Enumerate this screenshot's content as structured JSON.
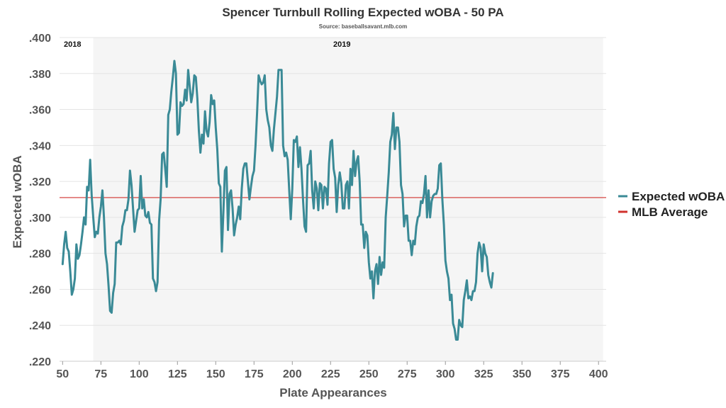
{
  "chart_data": {
    "type": "line",
    "title": "Spencer Turnbull Rolling Expected wOBA - 50 PA",
    "subtitle": "Source: baseballsavant.mlb.com",
    "xlabel": "Plate Appearances",
    "ylabel": "Expected wOBA",
    "xlim": [
      48,
      405
    ],
    "ylim": [
      0.22,
      0.4
    ],
    "x_ticks": [
      "50",
      "75",
      "100",
      "125",
      "150",
      "175",
      "200",
      "225",
      "250",
      "275",
      "300",
      "325",
      "350",
      "375",
      "400"
    ],
    "y_ticks": [
      ".400",
      ".380",
      ".360",
      ".340",
      ".320",
      ".300",
      ".280",
      ".260",
      ".240",
      ".220"
    ],
    "grid": true,
    "legend_position": "right",
    "seasons": [
      {
        "label": "2018",
        "x_start": 48,
        "x_end": 70,
        "shaded": false
      },
      {
        "label": "2019",
        "x_start": 70,
        "x_end": 403,
        "shaded": true
      }
    ],
    "reference_line": {
      "name": "MLB Average",
      "value": 0.311,
      "color": "#d0312d"
    },
    "series": [
      {
        "name": "Expected wOBA",
        "color": "#3a8a96",
        "points": [
          [
            50,
            0.274
          ],
          [
            51,
            0.285
          ],
          [
            52,
            0.292
          ],
          [
            53,
            0.283
          ],
          [
            54,
            0.281
          ],
          [
            55,
            0.27
          ],
          [
            56,
            0.257
          ],
          [
            57,
            0.26
          ],
          [
            58,
            0.266
          ],
          [
            59,
            0.285
          ],
          [
            60,
            0.277
          ],
          [
            61,
            0.279
          ],
          [
            62,
            0.285
          ],
          [
            63,
            0.292
          ],
          [
            64,
            0.3
          ],
          [
            65,
            0.296
          ],
          [
            66,
            0.317
          ],
          [
            67,
            0.315
          ],
          [
            68,
            0.332
          ],
          [
            69,
            0.312
          ],
          [
            70,
            0.3
          ],
          [
            71,
            0.289
          ],
          [
            72,
            0.292
          ],
          [
            73,
            0.291
          ],
          [
            74,
            0.3
          ],
          [
            75,
            0.306
          ],
          [
            76,
            0.315
          ],
          [
            77,
            0.3
          ],
          [
            78,
            0.28
          ],
          [
            79,
            0.274
          ],
          [
            80,
            0.262
          ],
          [
            81,
            0.248
          ],
          [
            82,
            0.247
          ],
          [
            83,
            0.258
          ],
          [
            84,
            0.263
          ],
          [
            85,
            0.286
          ],
          [
            86,
            0.286
          ],
          [
            87,
            0.287
          ],
          [
            88,
            0.285
          ],
          [
            89,
            0.295
          ],
          [
            90,
            0.298
          ],
          [
            91,
            0.304
          ],
          [
            92,
            0.304
          ],
          [
            93,
            0.31
          ],
          [
            94,
            0.326
          ],
          [
            95,
            0.318
          ],
          [
            96,
            0.305
          ],
          [
            97,
            0.292
          ],
          [
            98,
            0.298
          ],
          [
            99,
            0.304
          ],
          [
            100,
            0.305
          ],
          [
            101,
            0.323
          ],
          [
            102,
            0.305
          ],
          [
            103,
            0.31
          ],
          [
            104,
            0.301
          ],
          [
            105,
            0.3
          ],
          [
            106,
            0.303
          ],
          [
            107,
            0.297
          ],
          [
            108,
            0.296
          ],
          [
            109,
            0.266
          ],
          [
            110,
            0.264
          ],
          [
            111,
            0.259
          ],
          [
            112,
            0.264
          ],
          [
            113,
            0.298
          ],
          [
            114,
            0.31
          ],
          [
            115,
            0.335
          ],
          [
            116,
            0.336
          ],
          [
            117,
            0.327
          ],
          [
            118,
            0.317
          ],
          [
            119,
            0.357
          ],
          [
            120,
            0.36
          ],
          [
            121,
            0.37
          ],
          [
            122,
            0.378
          ],
          [
            123,
            0.387
          ],
          [
            124,
            0.38
          ],
          [
            125,
            0.346
          ],
          [
            126,
            0.347
          ],
          [
            127,
            0.364
          ],
          [
            128,
            0.362
          ],
          [
            129,
            0.363
          ],
          [
            130,
            0.371
          ],
          [
            131,
            0.365
          ],
          [
            132,
            0.382
          ],
          [
            133,
            0.373
          ],
          [
            134,
            0.364
          ],
          [
            135,
            0.369
          ],
          [
            136,
            0.379
          ],
          [
            137,
            0.378
          ],
          [
            138,
            0.366
          ],
          [
            139,
            0.348
          ],
          [
            140,
            0.336
          ],
          [
            141,
            0.346
          ],
          [
            142,
            0.341
          ],
          [
            143,
            0.359
          ],
          [
            144,
            0.348
          ],
          [
            145,
            0.345
          ],
          [
            146,
            0.353
          ],
          [
            147,
            0.368
          ],
          [
            148,
            0.363
          ],
          [
            149,
            0.365
          ],
          [
            150,
            0.35
          ],
          [
            151,
            0.338
          ],
          [
            152,
            0.319
          ],
          [
            153,
            0.317
          ],
          [
            154,
            0.281
          ],
          [
            155,
            0.303
          ],
          [
            156,
            0.326
          ],
          [
            157,
            0.328
          ],
          [
            158,
            0.293
          ],
          [
            159,
            0.313
          ],
          [
            160,
            0.315
          ],
          [
            161,
            0.305
          ],
          [
            162,
            0.29
          ],
          [
            163,
            0.296
          ],
          [
            164,
            0.3
          ],
          [
            165,
            0.306
          ],
          [
            166,
            0.299
          ],
          [
            167,
            0.316
          ],
          [
            168,
            0.327
          ],
          [
            169,
            0.33
          ],
          [
            170,
            0.33
          ],
          [
            171,
            0.32
          ],
          [
            172,
            0.31
          ],
          [
            173,
            0.317
          ],
          [
            174,
            0.323
          ],
          [
            175,
            0.326
          ],
          [
            176,
            0.34
          ],
          [
            177,
            0.358
          ],
          [
            178,
            0.379
          ],
          [
            179,
            0.376
          ],
          [
            180,
            0.374
          ],
          [
            181,
            0.375
          ],
          [
            182,
            0.379
          ],
          [
            183,
            0.36
          ],
          [
            184,
            0.354
          ],
          [
            185,
            0.35
          ],
          [
            186,
            0.34
          ],
          [
            187,
            0.337
          ],
          [
            188,
            0.349
          ],
          [
            189,
            0.358
          ],
          [
            190,
            0.367
          ],
          [
            191,
            0.382
          ],
          [
            192,
            0.382
          ],
          [
            193,
            0.382
          ],
          [
            194,
            0.34
          ],
          [
            195,
            0.334
          ],
          [
            196,
            0.336
          ],
          [
            197,
            0.332
          ],
          [
            198,
            0.315
          ],
          [
            199,
            0.299
          ],
          [
            200,
            0.316
          ],
          [
            201,
            0.343
          ],
          [
            202,
            0.342
          ],
          [
            203,
            0.345
          ],
          [
            204,
            0.328
          ],
          [
            205,
            0.339
          ],
          [
            206,
            0.327
          ],
          [
            207,
            0.31
          ],
          [
            208,
            0.295
          ],
          [
            209,
            0.292
          ],
          [
            210,
            0.329
          ],
          [
            211,
            0.33
          ],
          [
            212,
            0.337
          ],
          [
            213,
            0.315
          ],
          [
            214,
            0.305
          ],
          [
            215,
            0.32
          ],
          [
            216,
            0.316
          ],
          [
            217,
            0.304
          ],
          [
            218,
            0.319
          ],
          [
            219,
            0.318
          ],
          [
            220,
            0.305
          ],
          [
            221,
            0.317
          ],
          [
            222,
            0.316
          ],
          [
            223,
            0.307
          ],
          [
            224,
            0.33
          ],
          [
            225,
            0.342
          ],
          [
            226,
            0.343
          ],
          [
            227,
            0.327
          ],
          [
            228,
            0.322
          ],
          [
            229,
            0.303
          ],
          [
            230,
            0.318
          ],
          [
            231,
            0.325
          ],
          [
            232,
            0.319
          ],
          [
            233,
            0.305
          ],
          [
            234,
            0.305
          ],
          [
            235,
            0.318
          ],
          [
            236,
            0.32
          ],
          [
            237,
            0.305
          ],
          [
            238,
            0.327
          ],
          [
            239,
            0.318
          ],
          [
            240,
            0.337
          ],
          [
            241,
            0.323
          ],
          [
            242,
            0.331
          ],
          [
            243,
            0.334
          ],
          [
            244,
            0.32
          ],
          [
            245,
            0.296
          ],
          [
            246,
            0.296
          ],
          [
            247,
            0.283
          ],
          [
            248,
            0.292
          ],
          [
            249,
            0.29
          ],
          [
            250,
            0.275
          ],
          [
            251,
            0.266
          ],
          [
            252,
            0.27
          ],
          [
            253,
            0.255
          ],
          [
            254,
            0.27
          ],
          [
            255,
            0.274
          ],
          [
            256,
            0.263
          ],
          [
            257,
            0.278
          ],
          [
            258,
            0.268
          ],
          [
            259,
            0.275
          ],
          [
            260,
            0.272
          ],
          [
            261,
            0.3
          ],
          [
            262,
            0.312
          ],
          [
            263,
            0.325
          ],
          [
            264,
            0.342
          ],
          [
            265,
            0.346
          ],
          [
            266,
            0.358
          ],
          [
            267,
            0.338
          ],
          [
            268,
            0.35
          ],
          [
            269,
            0.35
          ],
          [
            270,
            0.342
          ],
          [
            271,
            0.318
          ],
          [
            272,
            0.313
          ],
          [
            273,
            0.295
          ],
          [
            274,
            0.301
          ],
          [
            275,
            0.301
          ],
          [
            276,
            0.287
          ],
          [
            277,
            0.287
          ],
          [
            278,
            0.279
          ],
          [
            279,
            0.287
          ],
          [
            280,
            0.285
          ],
          [
            281,
            0.295
          ],
          [
            282,
            0.3
          ],
          [
            283,
            0.301
          ],
          [
            284,
            0.309
          ],
          [
            285,
            0.308
          ],
          [
            286,
            0.313
          ],
          [
            287,
            0.323
          ],
          [
            288,
            0.3
          ],
          [
            289,
            0.315
          ],
          [
            290,
            0.3
          ],
          [
            291,
            0.309
          ],
          [
            292,
            0.312
          ],
          [
            293,
            0.313
          ],
          [
            294,
            0.313
          ],
          [
            295,
            0.316
          ],
          [
            296,
            0.329
          ],
          [
            297,
            0.33
          ],
          [
            298,
            0.31
          ],
          [
            299,
            0.296
          ],
          [
            300,
            0.276
          ],
          [
            301,
            0.27
          ],
          [
            302,
            0.266
          ],
          [
            303,
            0.254
          ],
          [
            304,
            0.257
          ],
          [
            305,
            0.241
          ],
          [
            306,
            0.238
          ],
          [
            307,
            0.232
          ],
          [
            308,
            0.232
          ],
          [
            309,
            0.243
          ],
          [
            310,
            0.24
          ],
          [
            311,
            0.239
          ],
          [
            312,
            0.254
          ],
          [
            313,
            0.259
          ],
          [
            314,
            0.265
          ],
          [
            315,
            0.255
          ],
          [
            316,
            0.256
          ],
          [
            317,
            0.254
          ],
          [
            318,
            0.259
          ],
          [
            319,
            0.259
          ],
          [
            320,
            0.264
          ],
          [
            321,
            0.28
          ],
          [
            322,
            0.286
          ],
          [
            323,
            0.283
          ],
          [
            324,
            0.27
          ],
          [
            325,
            0.285
          ],
          [
            326,
            0.28
          ],
          [
            327,
            0.278
          ],
          [
            328,
            0.268
          ],
          [
            329,
            0.264
          ],
          [
            330,
            0.261
          ],
          [
            331,
            0.269
          ]
        ]
      }
    ],
    "legend": [
      {
        "label": "Expected wOBA",
        "color": "#3a8a96"
      },
      {
        "label": "MLB Average",
        "color": "#d0312d"
      }
    ]
  }
}
